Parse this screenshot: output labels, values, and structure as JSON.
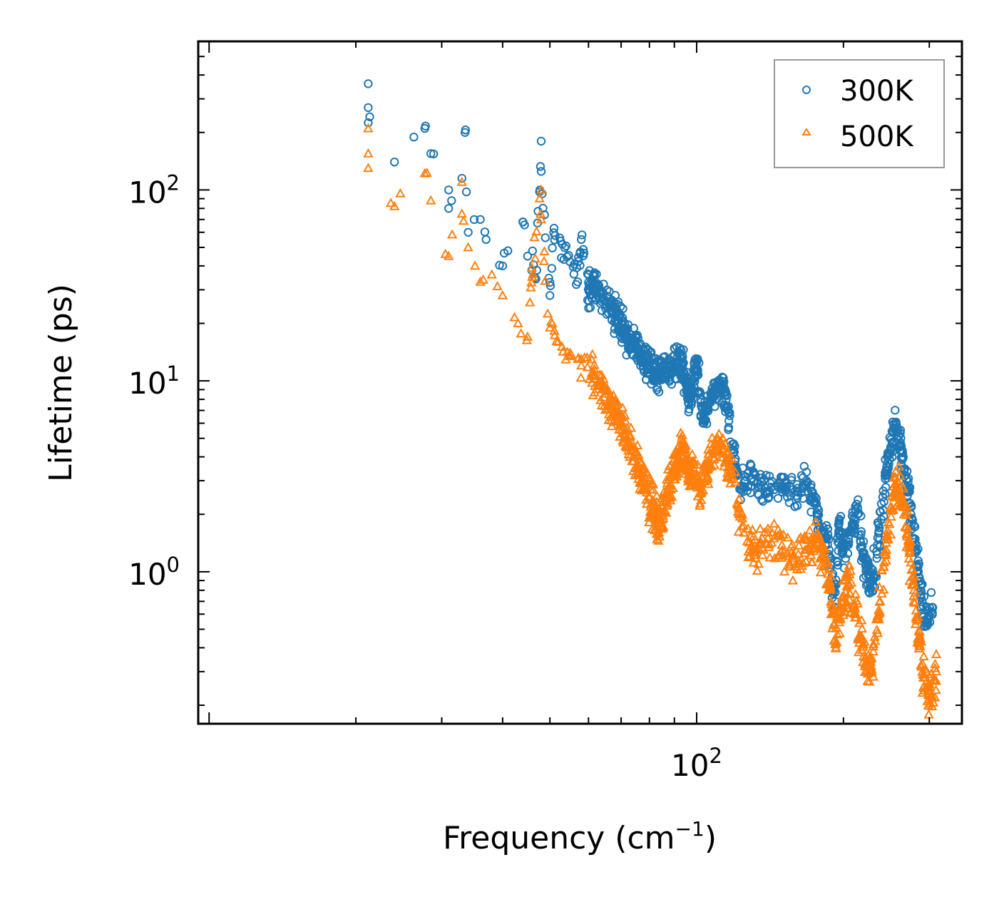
{
  "chart_data": {
    "type": "scatter",
    "title": "",
    "xlabel": "Frequency (cm",
    "xlabel_sup": "−1",
    "xlabel_close": ")",
    "ylabel": "Lifetime (ps)",
    "xscale": "log",
    "yscale": "log",
    "xlim": [
      9.5,
      350
    ],
    "ylim": [
      0.16,
      600
    ],
    "x_ticks": [
      {
        "value": 100,
        "base": "10",
        "exp": "2"
      }
    ],
    "y_ticks": [
      {
        "value": 1,
        "base": "10",
        "exp": "0"
      },
      {
        "value": 10,
        "base": "10",
        "exp": "1"
      },
      {
        "value": 100,
        "base": "10",
        "exp": "2"
      }
    ],
    "legend_position": "top-right",
    "series": [
      {
        "name": "300K",
        "marker": "circle",
        "color": "#1f77b4",
        "anchors": [
          [
            21.2,
            360
          ],
          [
            21.2,
            270
          ],
          [
            21.2,
            225
          ],
          [
            24,
            140
          ],
          [
            27.7,
            210
          ],
          [
            28.5,
            155
          ],
          [
            31,
            100
          ],
          [
            31,
            80
          ],
          [
            33,
            115
          ],
          [
            33.5,
            200
          ],
          [
            34,
            60
          ],
          [
            36,
            70
          ],
          [
            37,
            55
          ],
          [
            40,
            40
          ],
          [
            41,
            48
          ],
          [
            44,
            68
          ],
          [
            45,
            45
          ],
          [
            47,
            38
          ],
          [
            48,
            180
          ],
          [
            48,
            125
          ],
          [
            50,
            28
          ],
          [
            51,
            63
          ],
          [
            53,
            52
          ],
          [
            55,
            42
          ],
          [
            57,
            33
          ],
          [
            58,
            55
          ],
          [
            60,
            30
          ],
          [
            62,
            32
          ],
          [
            65,
            24
          ],
          [
            68,
            22
          ],
          [
            70,
            20
          ],
          [
            72,
            17
          ],
          [
            75,
            15
          ],
          [
            78,
            13
          ],
          [
            80,
            12
          ],
          [
            83,
            10.5
          ],
          [
            86,
            11
          ],
          [
            90,
            12
          ],
          [
            93,
            13
          ],
          [
            95,
            10
          ],
          [
            97,
            8
          ],
          [
            100,
            12.5
          ],
          [
            103,
            6
          ],
          [
            107,
            8.5
          ],
          [
            112,
            9.5
          ],
          [
            115,
            8
          ],
          [
            120,
            3.5
          ],
          [
            125,
            2.8
          ],
          [
            132,
            3.2
          ],
          [
            140,
            2.6
          ],
          [
            150,
            2.8
          ],
          [
            160,
            2.5
          ],
          [
            168,
            3
          ],
          [
            175,
            2.3
          ],
          [
            180,
            1.6
          ],
          [
            187,
            1.3
          ],
          [
            192,
            0.65
          ],
          [
            196,
            1.8
          ],
          [
            200,
            1.3
          ],
          [
            208,
            1.7
          ],
          [
            214,
            2
          ],
          [
            220,
            1.2
          ],
          [
            226,
            0.95
          ],
          [
            230,
            0.9
          ],
          [
            237,
            1.7
          ],
          [
            245,
            3.2
          ],
          [
            250,
            4.5
          ],
          [
            256,
            6
          ],
          [
            262,
            4.6
          ],
          [
            268,
            3.2
          ],
          [
            275,
            2.2
          ],
          [
            282,
            1.3
          ],
          [
            288,
            0.75
          ],
          [
            295,
            0.55
          ],
          [
            305,
            0.65
          ]
        ]
      },
      {
        "name": "500K",
        "marker": "triangle",
        "color": "#ff7f0e",
        "anchors": [
          [
            21.2,
            210
          ],
          [
            21.2,
            155
          ],
          [
            21.2,
            130
          ],
          [
            24,
            82
          ],
          [
            27.7,
            122
          ],
          [
            28.5,
            88
          ],
          [
            31,
            45
          ],
          [
            33,
            110
          ],
          [
            33,
            75
          ],
          [
            34,
            50
          ],
          [
            36,
            33
          ],
          [
            38,
            36
          ],
          [
            40,
            28
          ],
          [
            43,
            20
          ],
          [
            45,
            17
          ],
          [
            46,
            35
          ],
          [
            48,
            100
          ],
          [
            48,
            70
          ],
          [
            50,
            19
          ],
          [
            52,
            16
          ],
          [
            55,
            14
          ],
          [
            58,
            12
          ],
          [
            61,
            11
          ],
          [
            64,
            9
          ],
          [
            67,
            7.5
          ],
          [
            70,
            6
          ],
          [
            73,
            4.5
          ],
          [
            76,
            3.5
          ],
          [
            79,
            2.6
          ],
          [
            82,
            2.1
          ],
          [
            84,
            1.8
          ],
          [
            87,
            2.5
          ],
          [
            90,
            3.5
          ],
          [
            93,
            4.5
          ],
          [
            95,
            3.8
          ],
          [
            98,
            3.2
          ],
          [
            102,
            2.8
          ],
          [
            106,
            3.6
          ],
          [
            112,
            4.8
          ],
          [
            118,
            3.2
          ],
          [
            125,
            1.6
          ],
          [
            132,
            1.3
          ],
          [
            140,
            1.5
          ],
          [
            150,
            1.3
          ],
          [
            160,
            1.1
          ],
          [
            168,
            1.3
          ],
          [
            175,
            1.5
          ],
          [
            182,
            1.2
          ],
          [
            188,
            0.85
          ],
          [
            193,
            0.4
          ],
          [
            198,
            0.7
          ],
          [
            205,
            0.85
          ],
          [
            212,
            0.6
          ],
          [
            220,
            0.36
          ],
          [
            228,
            0.32
          ],
          [
            236,
            0.6
          ],
          [
            245,
            1.3
          ],
          [
            252,
            2.5
          ],
          [
            258,
            3
          ],
          [
            265,
            2.3
          ],
          [
            272,
            1.4
          ],
          [
            279,
            0.8
          ],
          [
            286,
            0.45
          ],
          [
            292,
            0.28
          ],
          [
            300,
            0.23
          ],
          [
            310,
            0.3
          ]
        ]
      }
    ]
  }
}
